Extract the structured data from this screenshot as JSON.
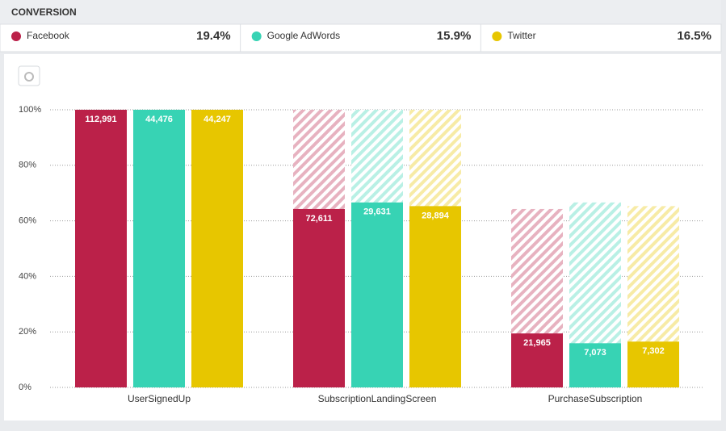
{
  "chart_data": {
    "type": "funnel-bar",
    "title": "CONVERSION",
    "categories": [
      "UserSignedUp",
      "SubscriptionLandingScreen",
      "PurchaseSubscription"
    ],
    "series": [
      {
        "name": "Facebook",
        "color": "#bb2149",
        "values": [
          100,
          64.26,
          19.44
        ],
        "value_labels": [
          "112,991",
          "72,611",
          "21,965"
        ],
        "conversion": {
          "value": 19.4,
          "label": "19.4%"
        }
      },
      {
        "name": "Google AdWords",
        "color": "#37d3b4",
        "values": [
          100,
          66.62,
          15.9
        ],
        "value_labels": [
          "44,476",
          "29,631",
          "7,073"
        ],
        "conversion": {
          "value": 15.9,
          "label": "15.9%"
        }
      },
      {
        "name": "Twitter",
        "color": "#e7c600",
        "values": [
          100,
          65.3,
          16.5
        ],
        "value_labels": [
          "44,247",
          "28,894",
          "7,302"
        ],
        "conversion": {
          "value": 16.5,
          "label": "16.5%"
        }
      }
    ],
    "ylim": [
      0,
      100
    ],
    "yticks": [
      {
        "value": 0,
        "label": "0%"
      },
      {
        "value": 20,
        "label": "20%"
      },
      {
        "value": 40,
        "label": "40%"
      },
      {
        "value": 60,
        "label": "60%"
      },
      {
        "value": 80,
        "label": "80%"
      },
      {
        "value": 100,
        "label": "100%"
      }
    ],
    "grid": true
  }
}
